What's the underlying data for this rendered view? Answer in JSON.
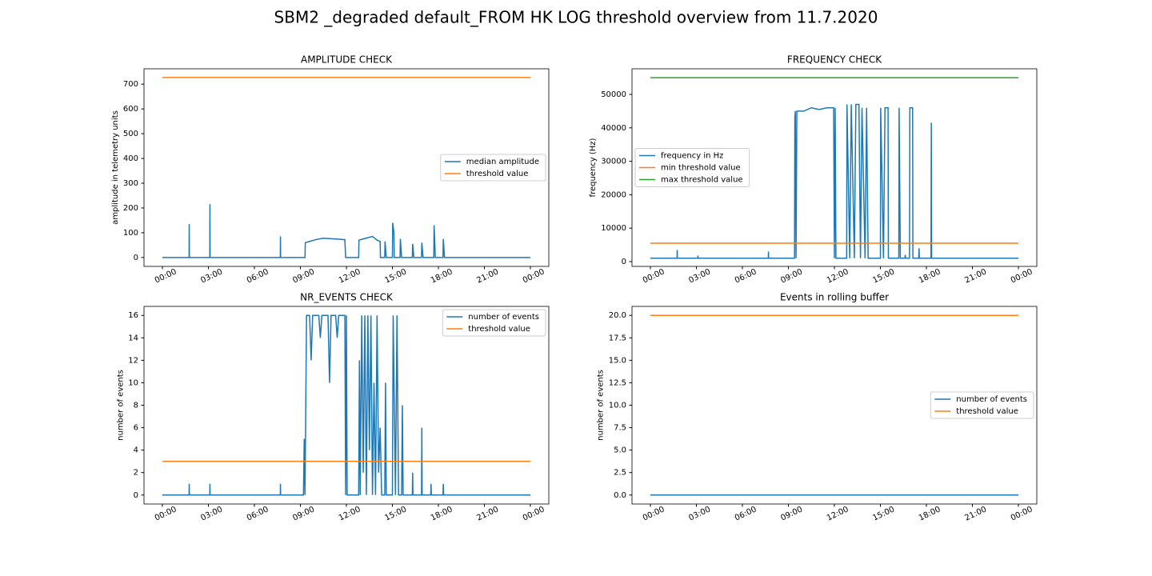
{
  "title": "SBM2 _degraded default_FROM HK LOG threshold overview from 11.7.2020",
  "chart_data": [
    {
      "type": "line",
      "title": "AMPLITUDE CHECK",
      "ylabel": "amplitude in telemetry units",
      "legend": "center right",
      "xlim": [
        -1.2,
        25.2
      ],
      "ylim": [
        -36,
        762
      ],
      "xticks": [
        {
          "value": 0,
          "label": "00:00"
        },
        {
          "value": 3,
          "label": "03:00"
        },
        {
          "value": 6,
          "label": "06:00"
        },
        {
          "value": 9,
          "label": "09:00"
        },
        {
          "value": 12,
          "label": "12:00"
        },
        {
          "value": 15,
          "label": "15:00"
        },
        {
          "value": 18,
          "label": "18:00"
        },
        {
          "value": 21,
          "label": "21:00"
        },
        {
          "value": 24,
          "label": "00:00"
        }
      ],
      "yticks": [
        0,
        100,
        200,
        300,
        400,
        500,
        600,
        700
      ],
      "series": [
        {
          "name": "median amplitude",
          "color": "#1f77b4",
          "x": [
            0,
            1.74,
            1.75,
            1.76,
            3.09,
            3.1,
            3.11,
            7.69,
            7.7,
            7.71,
            9.3,
            9.32,
            9.6,
            10,
            10.5,
            11,
            11.5,
            11.9,
            11.95,
            12.8,
            12.82,
            13.1,
            13.4,
            13.7,
            14,
            14.2,
            14.22,
            14.5,
            14.52,
            14.6,
            15,
            15.02,
            15.1,
            15.12,
            15.5,
            15.52,
            15.6,
            16.3,
            16.32,
            16.4,
            16.9,
            16.92,
            17,
            17.7,
            17.72,
            17.8,
            18.3,
            18.32,
            18.4,
            24
          ],
          "values": [
            0,
            0,
            135,
            0,
            0,
            215,
            0,
            0,
            85,
            0,
            0,
            60,
            65,
            72,
            78,
            76,
            74,
            72,
            0,
            0,
            70,
            75,
            80,
            85,
            70,
            65,
            0,
            0,
            65,
            0,
            0,
            140,
            100,
            0,
            0,
            75,
            0,
            0,
            55,
            0,
            0,
            60,
            0,
            0,
            130,
            0,
            0,
            75,
            0,
            0
          ]
        },
        {
          "name": "threshold value",
          "color": "#ff7f0e",
          "x": [
            0,
            24
          ],
          "values": [
            727,
            727
          ]
        }
      ]
    },
    {
      "type": "line",
      "title": "FREQUENCY CHECK",
      "ylabel": "frequency (Hz)",
      "legend": "center left",
      "xlim": [
        -1.2,
        25.2
      ],
      "ylim": [
        -1440,
        57660
      ],
      "xticks": [
        {
          "value": 0,
          "label": "00:00"
        },
        {
          "value": 3,
          "label": "03:00"
        },
        {
          "value": 6,
          "label": "06:00"
        },
        {
          "value": 9,
          "label": "09:00"
        },
        {
          "value": 12,
          "label": "12:00"
        },
        {
          "value": 15,
          "label": "15:00"
        },
        {
          "value": 18,
          "label": "18:00"
        },
        {
          "value": 21,
          "label": "21:00"
        },
        {
          "value": 24,
          "label": "00:00"
        }
      ],
      "yticks": [
        0,
        10000,
        20000,
        30000,
        40000,
        50000
      ],
      "series": [
        {
          "name": "frequency in Hz",
          "color": "#1f77b4",
          "x": [
            0,
            1.74,
            1.75,
            1.76,
            3.09,
            3.1,
            3.11,
            7.69,
            7.7,
            7.71,
            9.4,
            9.42,
            9.45,
            9.5,
            9.55,
            10,
            10.5,
            11,
            11.5,
            11.95,
            12,
            12.05,
            12.1,
            12.8,
            12.82,
            13,
            13.1,
            13.3,
            13.4,
            13.6,
            13.7,
            13.8,
            14,
            14.1,
            14.2,
            15,
            15.02,
            15.2,
            15.3,
            15.5,
            15.52,
            16.2,
            16.22,
            16.3,
            16.6,
            16.62,
            16.64,
            16.9,
            16.92,
            17.1,
            17.12,
            17.5,
            17.52,
            17.54,
            18.3,
            18.32,
            18.34,
            24
          ],
          "values": [
            1000,
            1000,
            3500,
            1000,
            1000,
            1800,
            1000,
            1000,
            3000,
            1000,
            1000,
            43000,
            45000,
            1000,
            45000,
            45000,
            46000,
            45500,
            46000,
            46000,
            1000,
            46000,
            1000,
            1000,
            47000,
            1000,
            47000,
            1000,
            47000,
            47000,
            1000,
            46000,
            1000,
            46000,
            1000,
            1000,
            46000,
            1000,
            46000,
            46000,
            1000,
            1000,
            46000,
            1000,
            1000,
            2000,
            1000,
            1000,
            46000,
            46000,
            1000,
            1000,
            4000,
            1000,
            1000,
            41500,
            1000,
            1000
          ]
        },
        {
          "name": "min threshold value",
          "color": "#ff7f0e",
          "x": [
            0,
            24
          ],
          "values": [
            5500,
            5500
          ]
        },
        {
          "name": "max threshold value",
          "color": "#2ca02c",
          "x": [
            0,
            24
          ],
          "values": [
            55000,
            55000
          ]
        }
      ]
    },
    {
      "type": "line",
      "title": "NR_EVENTS CHECK",
      "ylabel": "number of events",
      "legend": "upper right",
      "xlim": [
        -1.2,
        25.2
      ],
      "ylim": [
        -0.8,
        16.8
      ],
      "xticks": [
        {
          "value": 0,
          "label": "00:00"
        },
        {
          "value": 3,
          "label": "03:00"
        },
        {
          "value": 6,
          "label": "06:00"
        },
        {
          "value": 9,
          "label": "09:00"
        },
        {
          "value": 12,
          "label": "12:00"
        },
        {
          "value": 15,
          "label": "15:00"
        },
        {
          "value": 18,
          "label": "18:00"
        },
        {
          "value": 21,
          "label": "21:00"
        },
        {
          "value": 24,
          "label": "00:00"
        }
      ],
      "yticks": [
        0,
        2,
        4,
        6,
        8,
        10,
        12,
        14,
        16
      ],
      "series": [
        {
          "name": "number of events",
          "color": "#1f77b4",
          "x": [
            0,
            1.74,
            1.75,
            1.76,
            3.09,
            3.1,
            3.11,
            7.69,
            7.7,
            7.71,
            9.2,
            9.25,
            9.3,
            9.4,
            9.6,
            9.7,
            9.8,
            10.2,
            10.3,
            10.4,
            10.8,
            10.9,
            11,
            11.3,
            11.4,
            11.5,
            11.9,
            11.95,
            12,
            12.05,
            12.8,
            12.85,
            12.9,
            13,
            13.1,
            13.2,
            13.3,
            13.4,
            13.5,
            13.6,
            13.7,
            13.8,
            13.9,
            14,
            14.1,
            14.2,
            14.3,
            14.5,
            14.55,
            14.6,
            15,
            15.05,
            15.2,
            15.3,
            15.4,
            15.6,
            15.65,
            15.7,
            16.3,
            16.32,
            16.34,
            16.9,
            16.92,
            16.94,
            17.5,
            17.52,
            17.54,
            18.3,
            18.32,
            18.34,
            24
          ],
          "values": [
            0,
            0,
            1,
            0,
            0,
            1,
            0,
            0,
            1,
            0,
            0,
            5,
            0,
            16,
            16,
            12,
            16,
            16,
            14,
            16,
            16,
            10,
            16,
            16,
            14,
            16,
            16,
            0,
            16,
            0,
            0,
            12,
            0,
            16,
            2,
            16,
            0,
            16,
            4,
            16,
            0,
            10,
            0,
            16,
            2,
            6,
            0,
            0,
            10,
            0,
            0,
            16,
            0,
            16,
            0,
            0,
            8,
            0,
            0,
            2,
            0,
            0,
            6,
            0,
            0,
            1,
            0,
            0,
            1,
            0,
            0
          ]
        },
        {
          "name": "threshold value",
          "color": "#ff7f0e",
          "x": [
            0,
            24
          ],
          "values": [
            3,
            3
          ]
        }
      ]
    },
    {
      "type": "line",
      "title": "Events in rolling buffer",
      "ylabel": "number of events",
      "legend": "center right",
      "xlim": [
        -1.2,
        25.2
      ],
      "ylim": [
        -1,
        21
      ],
      "xticks": [
        {
          "value": 0,
          "label": "00:00"
        },
        {
          "value": 3,
          "label": "03:00"
        },
        {
          "value": 6,
          "label": "06:00"
        },
        {
          "value": 9,
          "label": "09:00"
        },
        {
          "value": 12,
          "label": "12:00"
        },
        {
          "value": 15,
          "label": "15:00"
        },
        {
          "value": 18,
          "label": "18:00"
        },
        {
          "value": 21,
          "label": "21:00"
        },
        {
          "value": 24,
          "label": "00:00"
        }
      ],
      "yticks": [
        {
          "value": 0,
          "label": "0.0"
        },
        {
          "value": 2.5,
          "label": "2.5"
        },
        {
          "value": 5,
          "label": "5.0"
        },
        {
          "value": 7.5,
          "label": "7.5"
        },
        {
          "value": 10,
          "label": "10.0"
        },
        {
          "value": 12.5,
          "label": "12.5"
        },
        {
          "value": 15,
          "label": "15.0"
        },
        {
          "value": 17.5,
          "label": "17.5"
        },
        {
          "value": 20,
          "label": "20.0"
        }
      ],
      "series": [
        {
          "name": "number of events",
          "color": "#1f77b4",
          "x": [
            0,
            24
          ],
          "values": [
            0,
            0
          ]
        },
        {
          "name": "threshold value",
          "color": "#ff7f0e",
          "x": [
            0,
            24
          ],
          "values": [
            20,
            20
          ]
        }
      ]
    }
  ]
}
